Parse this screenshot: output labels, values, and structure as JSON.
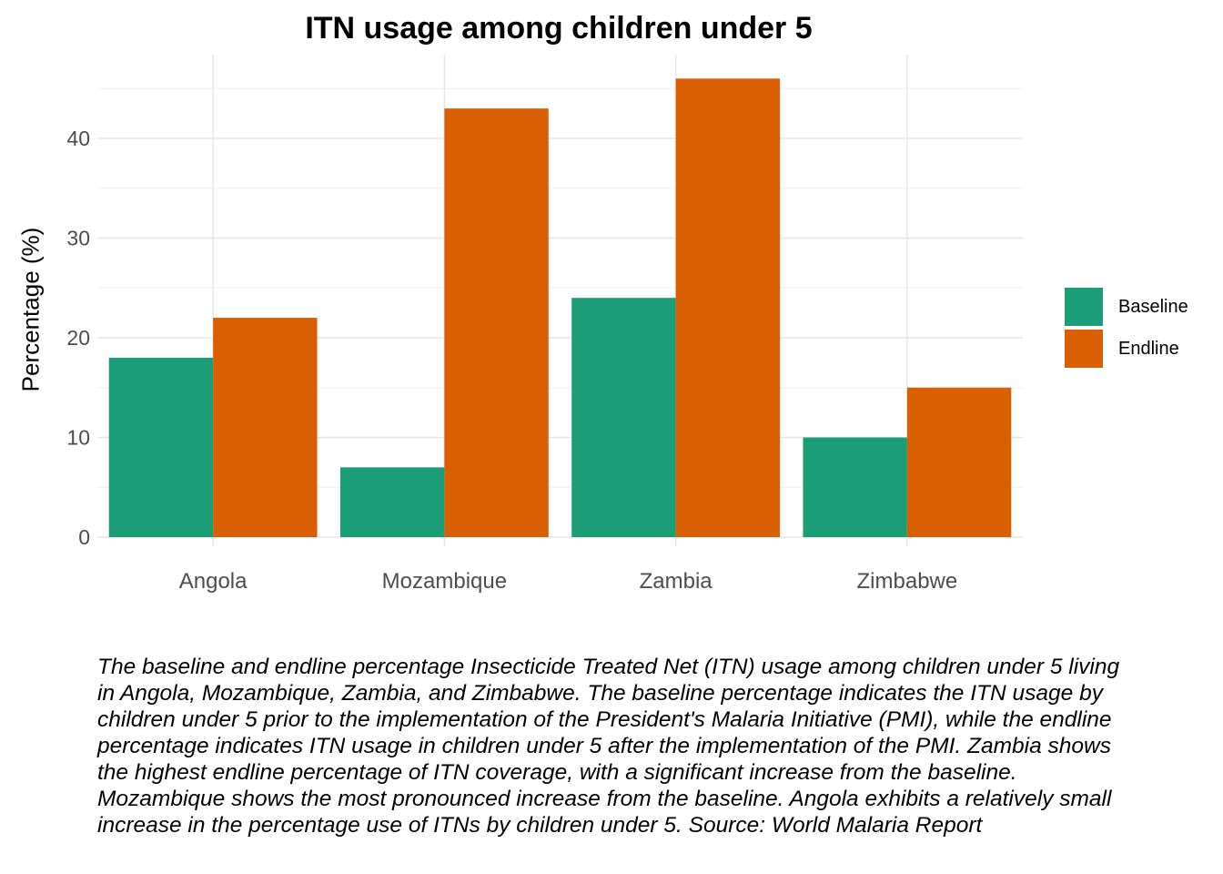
{
  "chart_data": {
    "type": "bar",
    "title": "ITN usage among children under 5",
    "xlabel": "",
    "ylabel": "Percentage (%)",
    "categories": [
      "Angola",
      "Mozambique",
      "Zambia",
      "Zimbabwe"
    ],
    "series": [
      {
        "name": "Baseline",
        "color": "#1b9e77",
        "values": [
          18,
          7,
          24,
          10
        ]
      },
      {
        "name": "Endline",
        "color": "#d95f02",
        "values": [
          22,
          43,
          46,
          15
        ]
      }
    ],
    "ylim": [
      0,
      48
    ],
    "yticks": [
      0,
      10,
      20,
      30,
      40
    ],
    "grid": true,
    "legend_position": "right",
    "caption": "The baseline and endline percentage Insecticide Treated Net (ITN) usage among children under 5 living in Angola, Mozambique, Zambia, and Zimbabwe. The baseline percentage indicates the ITN usage by children under 5 prior to the implementation of the President's Malaria Initiative (PMI), while the endline percentage indicates ITN usage in children under 5 after the implementation of the PMI. Zambia shows the highest endline percentage of ITN coverage, with a significant increase from the baseline. Mozambique shows the most pronounced increase from the baseline. Angola exhibits a relatively small increase in the percentage use of ITNs by children under 5. Source: World Malaria Report"
  }
}
